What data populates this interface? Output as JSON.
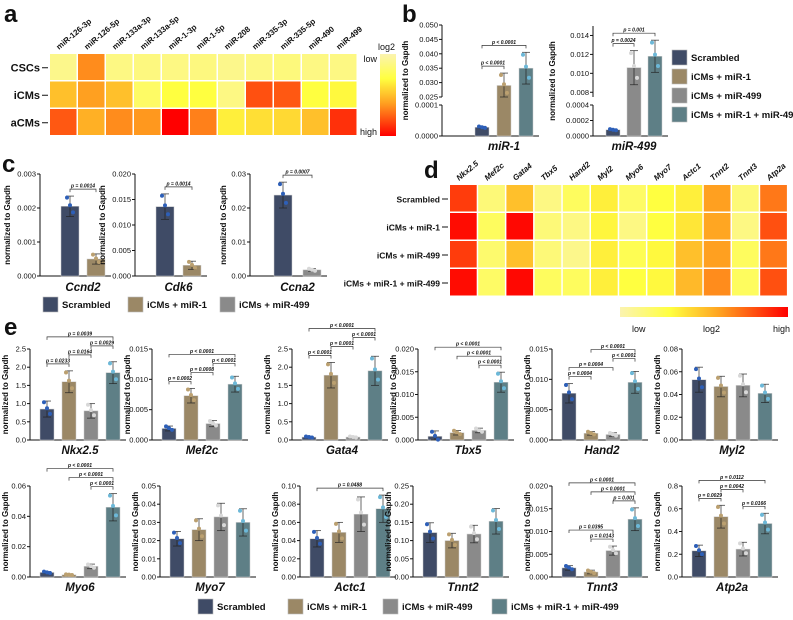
{
  "panel_letters": [
    "a",
    "b",
    "c",
    "d",
    "e"
  ],
  "ylabel": "normalized to Gapdh",
  "groups": [
    {
      "name": "Scrambled",
      "color": "#3f4b66",
      "point_color": "#2d5fb8"
    },
    {
      "name": "iCMs + miR-1",
      "color": "#9b8866",
      "point_color": "#bba070"
    },
    {
      "name": "iCMs + miR-499",
      "color": "#8a8a8a",
      "point_color": "#d8d8d8"
    },
    {
      "name": "iCMs + miR-1 + miR-499",
      "color": "#5e7f86",
      "point_color": "#6cb8d8"
    }
  ],
  "color_scale": {
    "low": "#fbf3b0",
    "mid1": "#ffff40",
    "mid2": "#ffa020",
    "high": "#ff0000"
  },
  "chart_data": [
    {
      "id": "a",
      "type": "heatmap",
      "columns": [
        "miR-126-3p",
        "miR-126-5p",
        "miR-133a-3p",
        "miR-133a-5p",
        "miR-1-3p",
        "miR-1-5p",
        "miR-208",
        "miR-335-3p",
        "miR-335-5p",
        "miR-490",
        "miR-499"
      ],
      "rows": [
        "CSCs",
        "iCMs",
        "aCMs"
      ],
      "values": [
        [
          0.1,
          0.65,
          0.12,
          0.13,
          0.12,
          0.13,
          0.1,
          0.12,
          0.14,
          0.12,
          0.12
        ],
        [
          0.5,
          0.6,
          0.5,
          0.2,
          0.3,
          0.3,
          0.12,
          0.8,
          0.78,
          0.3,
          0.32
        ],
        [
          0.78,
          0.55,
          0.65,
          0.62,
          1.0,
          0.68,
          0.35,
          0.4,
          0.42,
          0.5,
          0.88
        ]
      ],
      "colorbar": {
        "title": "log2",
        "low": "low",
        "high": "high"
      }
    },
    {
      "id": "b1",
      "type": "bar",
      "gene": "miR-1",
      "axis_segments": [
        {
          "range": [
            0,
            0.0001
          ],
          "ticks": [
            "0.0000",
            "0.0001"
          ]
        },
        {
          "range": [
            0.025,
            0.05
          ],
          "ticks": [
            "0.025",
            "0.030",
            "0.035",
            "0.040",
            "0.045",
            "0.050"
          ]
        }
      ],
      "bars": [
        {
          "group": 0,
          "mean": 2.8e-05,
          "sd": 3e-06
        },
        {
          "group": 1,
          "mean": 0.029,
          "sd": 0.0043
        },
        {
          "group": 3,
          "mean": 0.035,
          "sd": 0.0055
        }
      ],
      "comparisons": [
        {
          "a": 0,
          "b": 1,
          "p": "p < 0.0001"
        },
        {
          "a": 0,
          "b": 2,
          "p": "p < 0.0001"
        }
      ]
    },
    {
      "id": "b2",
      "type": "bar",
      "gene": "miR-499",
      "axis_segments": [
        {
          "range": [
            0,
            0.0004
          ],
          "ticks": [
            "0.0000",
            "0.0002",
            "0.0004"
          ]
        },
        {
          "range": [
            0.0075,
            0.015
          ],
          "ticks": [
            "0.008",
            "0.010",
            "0.012",
            "0.014"
          ]
        }
      ],
      "bars": [
        {
          "group": 0,
          "mean": 8e-05,
          "sd": 1e-05
        },
        {
          "group": 2,
          "mean": 0.0106,
          "sd": 0.0018
        },
        {
          "group": 3,
          "mean": 0.0118,
          "sd": 0.0017
        }
      ],
      "comparisons": [
        {
          "a": 0,
          "b": 1,
          "p": "p = 0.0024"
        },
        {
          "a": 0,
          "b": 2,
          "p": "p = 0.001"
        }
      ]
    },
    {
      "id": "c1",
      "type": "bar",
      "gene": "Ccnd2",
      "axis_segments": [
        {
          "range": [
            0,
            0.003
          ],
          "ticks": [
            "0.000",
            "0.001",
            "0.002",
            "0.003"
          ]
        }
      ],
      "bars": [
        {
          "group": 0,
          "mean": 0.00205,
          "sd": 0.0003
        },
        {
          "group": 1,
          "mean": 0.0005,
          "sd": 0.00015
        }
      ],
      "comparisons": [
        {
          "a": 0,
          "b": 1,
          "p": "p = 0.0014"
        }
      ]
    },
    {
      "id": "c2",
      "type": "bar",
      "gene": "Cdk6",
      "axis_segments": [
        {
          "range": [
            0,
            0.02
          ],
          "ticks": [
            "0.000",
            "0.005",
            "0.010",
            "0.015",
            "0.020"
          ]
        }
      ],
      "bars": [
        {
          "group": 0,
          "mean": 0.0136,
          "sd": 0.0025
        },
        {
          "group": 1,
          "mean": 0.0021,
          "sd": 0.0008
        }
      ],
      "comparisons": [
        {
          "a": 0,
          "b": 1,
          "p": "p = 0.0014"
        }
      ]
    },
    {
      "id": "c3",
      "type": "bar",
      "gene": "Ccna2",
      "axis_segments": [
        {
          "range": [
            0,
            0.03
          ],
          "ticks": [
            "0.00",
            "0.01",
            "0.02",
            "0.03"
          ]
        }
      ],
      "bars": [
        {
          "group": 0,
          "mean": 0.0238,
          "sd": 0.0038
        },
        {
          "group": 2,
          "mean": 0.0018,
          "sd": 0.0004
        }
      ],
      "comparisons": [
        {
          "a": 0,
          "b": 1,
          "p": "p = 0.0007"
        }
      ]
    },
    {
      "id": "d",
      "type": "heatmap",
      "columns": [
        "Nkx2.5",
        "Mef2c",
        "Gata4",
        "Tbx5",
        "Hand2",
        "Myl2",
        "Myo6",
        "Myo7",
        "Actc1",
        "Tnnt2",
        "Tnnt3",
        "Atp2a"
      ],
      "rows": [
        "Scrambled",
        "iCMs + miR-1",
        "iCMs + miR-499",
        "iCMs + miR-1 + miR-499"
      ],
      "values": [
        [
          0.85,
          0.15,
          0.5,
          0.12,
          0.22,
          0.35,
          0.2,
          0.3,
          0.35,
          0.6,
          0.15,
          0.7
        ],
        [
          0.97,
          0.22,
          0.98,
          0.15,
          0.12,
          0.33,
          0.12,
          0.3,
          0.38,
          0.58,
          0.12,
          0.8
        ],
        [
          0.85,
          0.18,
          0.5,
          0.15,
          0.1,
          0.35,
          0.25,
          0.32,
          0.5,
          0.6,
          0.22,
          0.7
        ],
        [
          0.97,
          0.2,
          0.98,
          0.22,
          0.22,
          0.35,
          0.3,
          0.32,
          0.52,
          0.65,
          0.22,
          0.8
        ]
      ],
      "colorbar": {
        "title": "log2",
        "low": "low",
        "high": "high"
      }
    },
    {
      "id": "e1",
      "type": "bar",
      "gene": "Nkx2.5",
      "axis_segments": [
        {
          "range": [
            0,
            2.5
          ],
          "ticks": [
            "0.0",
            "0.5",
            "1.0",
            "1.5",
            "2.0",
            "2.5"
          ]
        }
      ],
      "bars": [
        {
          "group": 0,
          "mean": 0.85,
          "sd": 0.22
        },
        {
          "group": 1,
          "mean": 1.6,
          "sd": 0.3
        },
        {
          "group": 2,
          "mean": 0.8,
          "sd": 0.2
        },
        {
          "group": 3,
          "mean": 1.85,
          "sd": 0.3
        }
      ],
      "comparisons": [
        {
          "a": 0,
          "b": 1,
          "p": "p = 0.0233"
        },
        {
          "a": 1,
          "b": 2,
          "p": "p = 0.0164"
        },
        {
          "a": 2,
          "b": 3,
          "p": "p = 0.0029"
        },
        {
          "a": 0,
          "b": 3,
          "p": "p = 0.0039"
        }
      ]
    },
    {
      "id": "e2",
      "type": "bar",
      "gene": "Mef2c",
      "axis_segments": [
        {
          "range": [
            0,
            0.015
          ],
          "ticks": [
            "0.000",
            "0.005",
            "0.010",
            "0.015"
          ]
        }
      ],
      "bars": [
        {
          "group": 0,
          "mean": 0.0019,
          "sd": 0.0004
        },
        {
          "group": 1,
          "mean": 0.0073,
          "sd": 0.0012
        },
        {
          "group": 2,
          "mean": 0.0027,
          "sd": 0.0005
        },
        {
          "group": 3,
          "mean": 0.0092,
          "sd": 0.0013
        }
      ],
      "comparisons": [
        {
          "a": 0,
          "b": 1,
          "p": "p = 0.0002"
        },
        {
          "a": 1,
          "b": 2,
          "p": "p = 0.0008"
        },
        {
          "a": 2,
          "b": 3,
          "p": "p < 0.0001"
        },
        {
          "a": 0,
          "b": 3,
          "p": "p < 0.0001"
        }
      ]
    },
    {
      "id": "e3",
      "type": "bar",
      "gene": "Gata4",
      "axis_segments": [
        {
          "range": [
            0,
            2.5
          ],
          "ticks": [
            "0.0",
            "0.5",
            "1.0",
            "1.5",
            "2.0",
            "2.5"
          ]
        }
      ],
      "bars": [
        {
          "group": 0,
          "mean": 0.08,
          "sd": 0.02
        },
        {
          "group": 1,
          "mean": 1.78,
          "sd": 0.35
        },
        {
          "group": 2,
          "mean": 0.08,
          "sd": 0.02
        },
        {
          "group": 3,
          "mean": 1.9,
          "sd": 0.4
        }
      ],
      "comparisons": [
        {
          "a": 0,
          "b": 1,
          "p": "p < 0.0001"
        },
        {
          "a": 1,
          "b": 2,
          "p": "p = 0.0001"
        },
        {
          "a": 2,
          "b": 3,
          "p": "p < 0.0001"
        },
        {
          "a": 0,
          "b": 3,
          "p": "p < 0.0001"
        }
      ]
    },
    {
      "id": "e4",
      "type": "bar",
      "gene": "Tbx5",
      "axis_segments": [
        {
          "range": [
            0,
            0.02
          ],
          "ticks": [
            "0.000",
            "0.005",
            "0.010",
            "0.015",
            "0.020"
          ]
        }
      ],
      "bars": [
        {
          "group": 0,
          "mean": 0.0008,
          "sd": 0.0012
        },
        {
          "group": 1,
          "mean": 0.0016,
          "sd": 0.0005
        },
        {
          "group": 2,
          "mean": 0.0021,
          "sd": 0.0005
        },
        {
          "group": 3,
          "mean": 0.0127,
          "sd": 0.0022
        }
      ],
      "comparisons": [
        {
          "a": 2,
          "b": 3,
          "p": "p < 0.0001"
        },
        {
          "a": 1,
          "b": 3,
          "p": "p < 0.0001"
        },
        {
          "a": 0,
          "b": 3,
          "p": "p < 0.0001"
        }
      ]
    },
    {
      "id": "e5",
      "type": "bar",
      "gene": "Hand2",
      "axis_segments": [
        {
          "range": [
            0,
            0.015
          ],
          "ticks": [
            "0.000",
            "0.005",
            "0.010",
            "0.015"
          ]
        }
      ],
      "bars": [
        {
          "group": 0,
          "mean": 0.0077,
          "sd": 0.0016
        },
        {
          "group": 1,
          "mean": 0.0011,
          "sd": 0.0003
        },
        {
          "group": 2,
          "mean": 0.0009,
          "sd": 0.0003
        },
        {
          "group": 3,
          "mean": 0.0095,
          "sd": 0.0018
        }
      ],
      "comparisons": [
        {
          "a": 0,
          "b": 1,
          "p": "p = 0.0004"
        },
        {
          "a": 0,
          "b": 2,
          "p": "p = 0.0004"
        },
        {
          "a": 2,
          "b": 3,
          "p": "p < 0.0001"
        },
        {
          "a": 1,
          "b": 3,
          "p": "p < 0.0001"
        }
      ]
    },
    {
      "id": "e6",
      "type": "bar",
      "gene": "Myl2",
      "axis_segments": [
        {
          "range": [
            0,
            0.08
          ],
          "ticks": [
            "0.00",
            "0.02",
            "0.04",
            "0.06",
            "0.08"
          ]
        }
      ],
      "bars": [
        {
          "group": 0,
          "mean": 0.053,
          "sd": 0.011
        },
        {
          "group": 1,
          "mean": 0.047,
          "sd": 0.009
        },
        {
          "group": 2,
          "mean": 0.048,
          "sd": 0.01
        },
        {
          "group": 3,
          "mean": 0.041,
          "sd": 0.008
        }
      ],
      "comparisons": []
    },
    {
      "id": "e7",
      "type": "bar",
      "gene": "Myo6",
      "axis_segments": [
        {
          "range": [
            0,
            0.06
          ],
          "ticks": [
            "0.00",
            "0.02",
            "0.04",
            "0.06"
          ]
        }
      ],
      "bars": [
        {
          "group": 0,
          "mean": 0.003,
          "sd": 0.0006
        },
        {
          "group": 1,
          "mean": 0.0015,
          "sd": 0.0003
        },
        {
          "group": 2,
          "mean": 0.007,
          "sd": 0.0015
        },
        {
          "group": 3,
          "mean": 0.046,
          "sd": 0.009
        }
      ],
      "comparisons": [
        {
          "a": 2,
          "b": 3,
          "p": "p < 0.0001"
        },
        {
          "a": 1,
          "b": 3,
          "p": "p < 0.0001"
        },
        {
          "a": 0,
          "b": 3,
          "p": "p < 0.0001"
        }
      ]
    },
    {
      "id": "e8",
      "type": "bar",
      "gene": "Myo7",
      "axis_segments": [
        {
          "range": [
            0,
            0.05
          ],
          "ticks": [
            "0.00",
            "0.01",
            "0.02",
            "0.03",
            "0.04",
            "0.05"
          ]
        }
      ],
      "bars": [
        {
          "group": 0,
          "mean": 0.021,
          "sd": 0.004
        },
        {
          "group": 1,
          "mean": 0.026,
          "sd": 0.006
        },
        {
          "group": 2,
          "mean": 0.033,
          "sd": 0.0075
        },
        {
          "group": 3,
          "mean": 0.03,
          "sd": 0.0075
        }
      ],
      "comparisons": []
    },
    {
      "id": "e9",
      "type": "bar",
      "gene": "Actc1",
      "axis_segments": [
        {
          "range": [
            0,
            0.1
          ],
          "ticks": [
            "0.00",
            "0.02",
            "0.04",
            "0.06",
            "0.08",
            "0.10"
          ]
        }
      ],
      "bars": [
        {
          "group": 0,
          "mean": 0.042,
          "sd": 0.009
        },
        {
          "group": 1,
          "mean": 0.049,
          "sd": 0.011
        },
        {
          "group": 2,
          "mean": 0.069,
          "sd": 0.019
        },
        {
          "group": 3,
          "mean": 0.075,
          "sd": 0.015
        }
      ],
      "comparisons": [
        {
          "a": 0,
          "b": 3,
          "p": "p = 0.0488"
        }
      ]
    },
    {
      "id": "e10",
      "type": "bar",
      "gene": "Tnnt2",
      "axis_segments": [
        {
          "range": [
            0,
            0.25
          ],
          "ticks": [
            "0.00",
            "0.05",
            "0.10",
            "0.15",
            "0.20",
            "0.25"
          ]
        }
      ],
      "bars": [
        {
          "group": 0,
          "mean": 0.122,
          "sd": 0.027
        },
        {
          "group": 1,
          "mean": 0.1,
          "sd": 0.02
        },
        {
          "group": 2,
          "mean": 0.118,
          "sd": 0.024
        },
        {
          "group": 3,
          "mean": 0.153,
          "sd": 0.035
        }
      ],
      "comparisons": []
    },
    {
      "id": "e11",
      "type": "bar",
      "gene": "Tnnt3",
      "axis_segments": [
        {
          "range": [
            0,
            0.02
          ],
          "ticks": [
            "0.000",
            "0.005",
            "0.010",
            "0.015",
            "0.020"
          ]
        }
      ],
      "bars": [
        {
          "group": 0,
          "mean": 0.002,
          "sd": 0.0005
        },
        {
          "group": 1,
          "mean": 0.0011,
          "sd": 0.0004
        },
        {
          "group": 2,
          "mean": 0.0058,
          "sd": 0.001
        },
        {
          "group": 3,
          "mean": 0.0127,
          "sd": 0.0025
        }
      ],
      "comparisons": [
        {
          "a": 1,
          "b": 2,
          "p": "p = 0.0143"
        },
        {
          "a": 0,
          "b": 2,
          "p": "p = 0.0395"
        },
        {
          "a": 2,
          "b": 3,
          "p": "p = 0.001"
        },
        {
          "a": 1,
          "b": 3,
          "p": "p < 0.0001"
        },
        {
          "a": 0,
          "b": 3,
          "p": "p < 0.0001"
        }
      ]
    },
    {
      "id": "e12",
      "type": "bar",
      "gene": "Atp2a",
      "axis_segments": [
        {
          "range": [
            0,
            0.8
          ],
          "ticks": [
            "0.0",
            "0.2",
            "0.4",
            "0.6",
            "0.8"
          ]
        }
      ],
      "bars": [
        {
          "group": 0,
          "mean": 0.23,
          "sd": 0.05
        },
        {
          "group": 1,
          "mean": 0.53,
          "sd": 0.1
        },
        {
          "group": 2,
          "mean": 0.245,
          "sd": 0.06
        },
        {
          "group": 3,
          "mean": 0.47,
          "sd": 0.09
        }
      ],
      "comparisons": [
        {
          "a": 0,
          "b": 1,
          "p": "p = 0.0029"
        },
        {
          "a": 2,
          "b": 3,
          "p": "p = 0.0166"
        },
        {
          "a": 1,
          "b": 2,
          "p": "p = 0.0042"
        },
        {
          "a": 0,
          "b": 3,
          "p": "p = 0.0112"
        }
      ]
    }
  ]
}
